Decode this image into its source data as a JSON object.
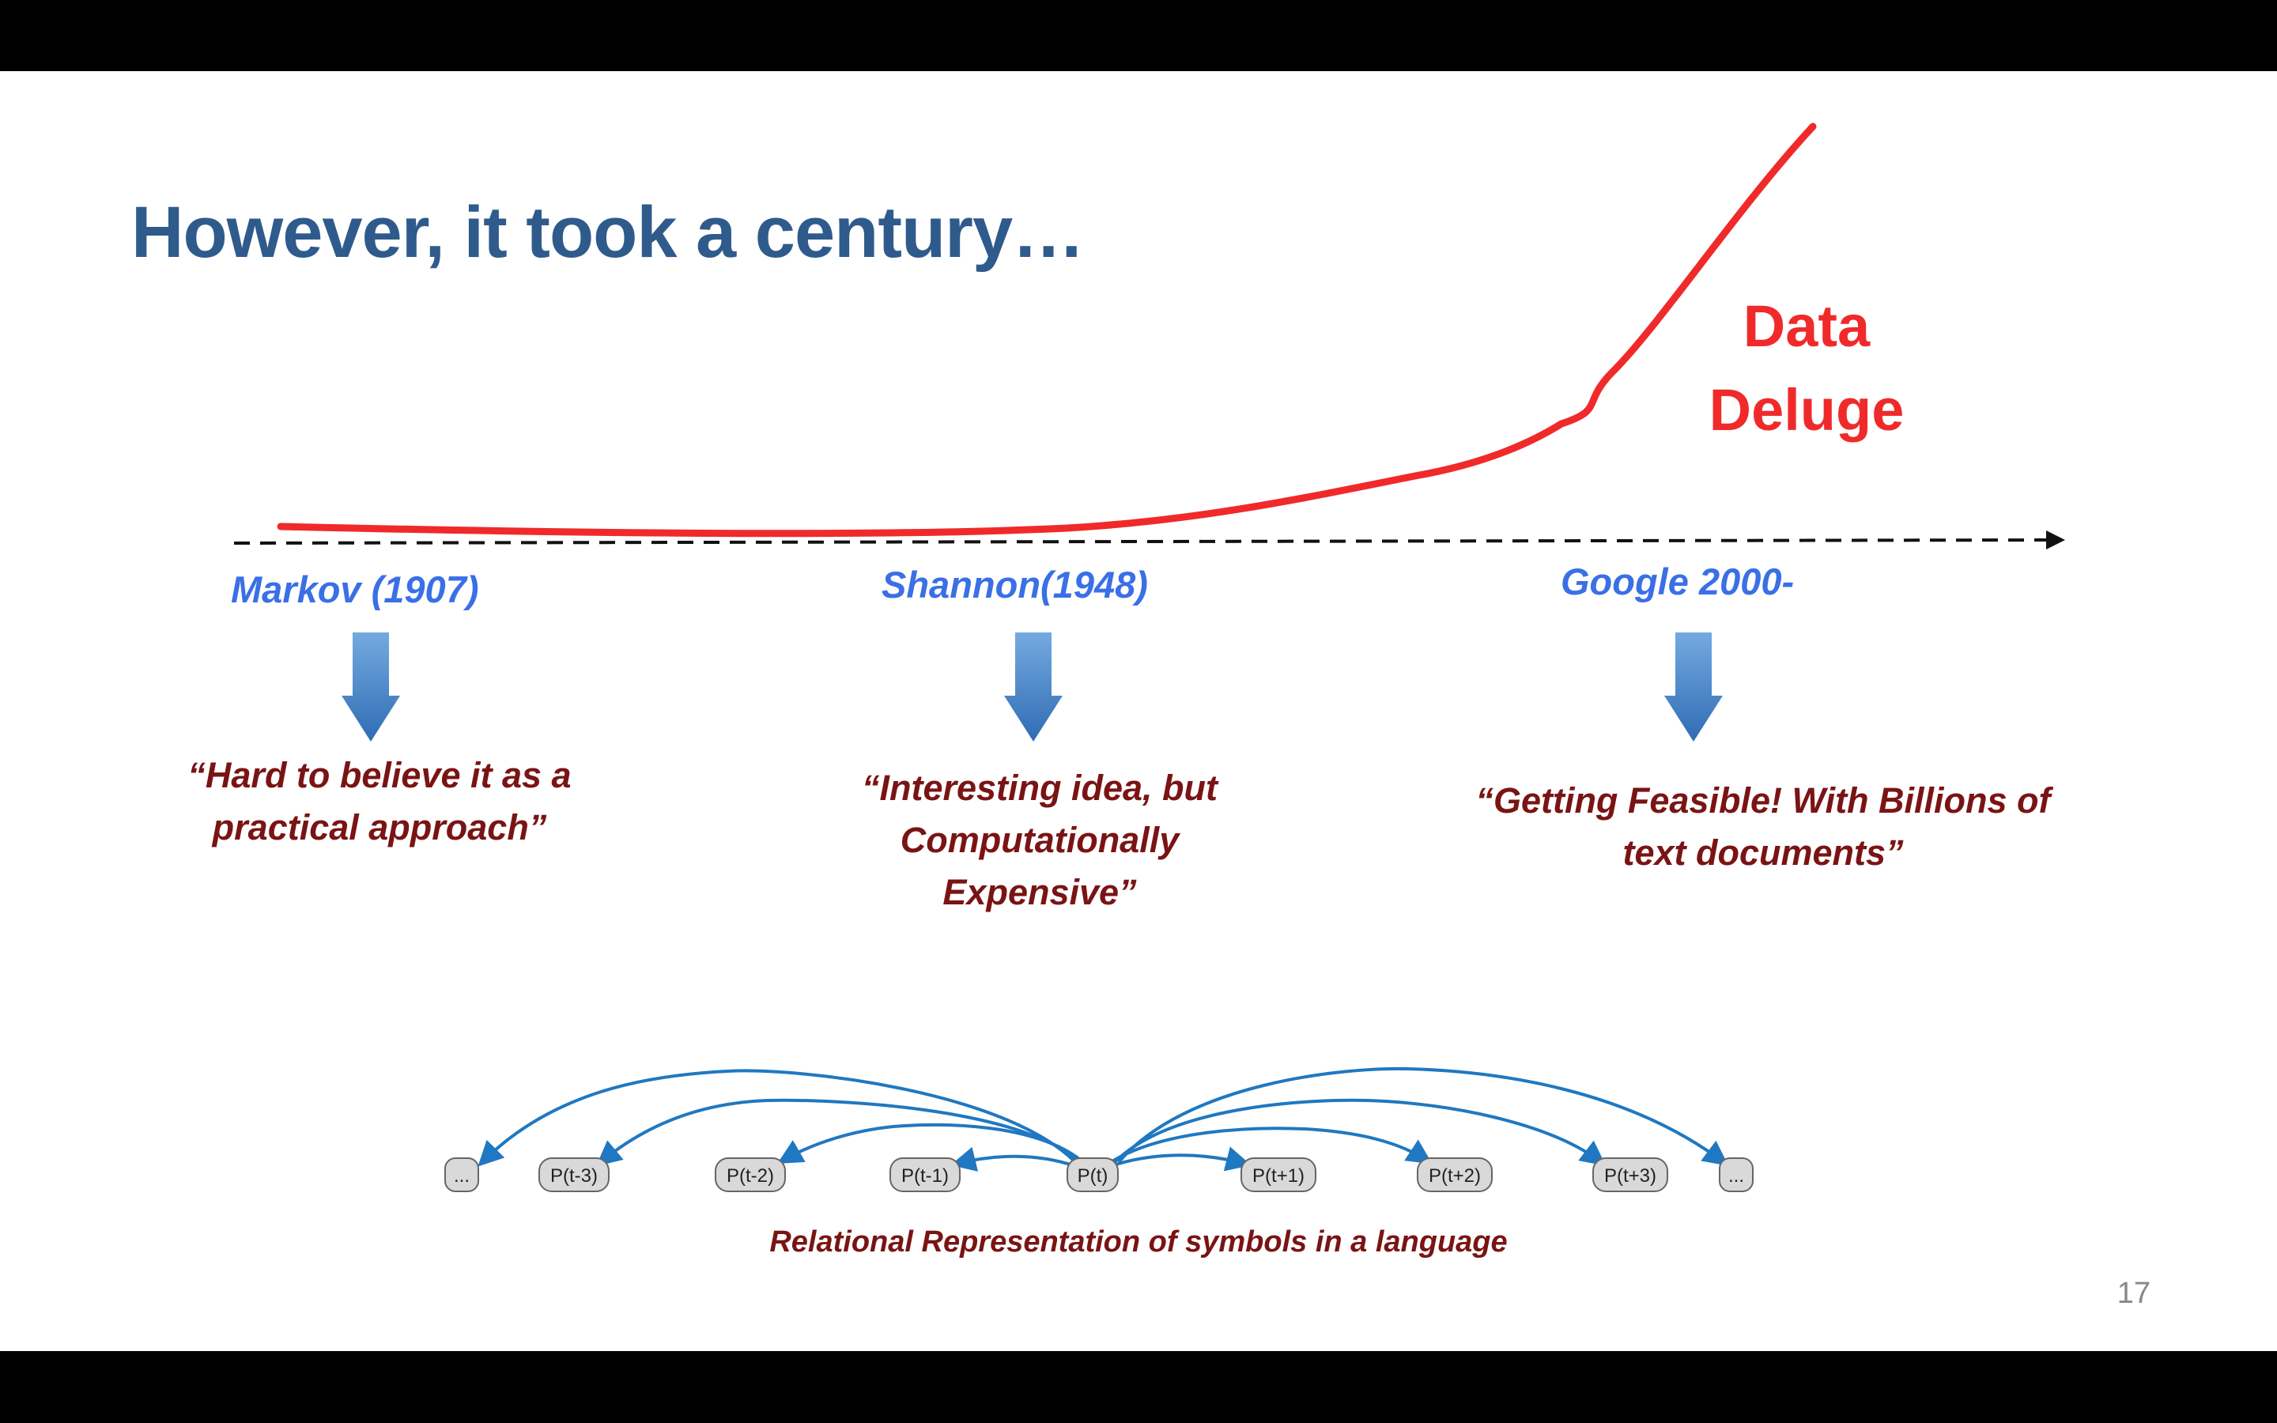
{
  "slide": {
    "title": "However, it took a century…",
    "curve_label": [
      "Data",
      "Deluge"
    ],
    "timeline": [
      {
        "era": "Markov (1907)",
        "quote": "“Hard to believe it as a practical approach”"
      },
      {
        "era": "Shannon(1948)",
        "quote": "“Interesting idea, but Computationally Expensive”"
      },
      {
        "era": "Google 2000-",
        "quote": "“Getting Feasible! With Billions of text documents”"
      }
    ],
    "diagram": {
      "nodes": [
        "...",
        "P(t-3)",
        "P(t-2)",
        "P(t-1)",
        "P(t)",
        "P(t+1)",
        "P(t+2)",
        "P(t+3)",
        "..."
      ],
      "caption": "Relational Representation of symbols in a language"
    },
    "page_number": "17"
  },
  "colors": {
    "title": "#2f5b8c",
    "curve": "#f02a2a",
    "era": "#3a6fe6",
    "quote": "#7a1414",
    "arrow": "#4a86c8",
    "diagram_link": "#1f78c1",
    "node_fill": "#d9d9d9"
  }
}
